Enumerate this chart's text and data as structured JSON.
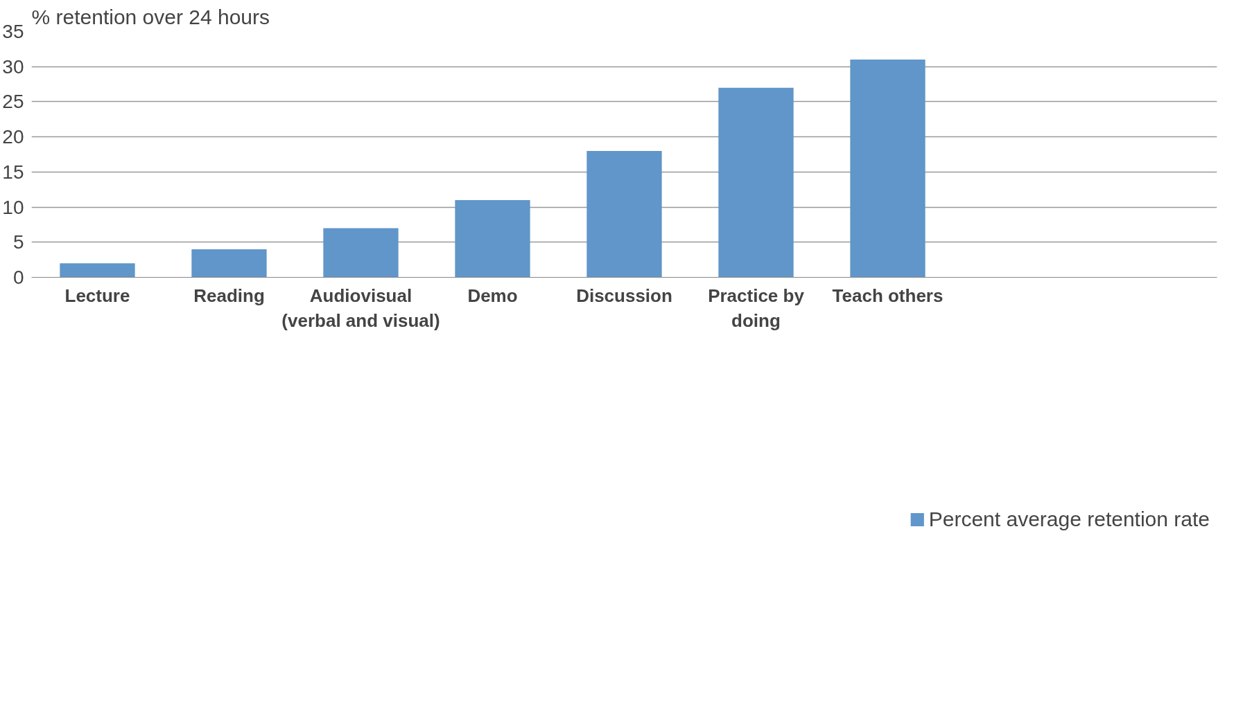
{
  "chart_data": {
    "type": "bar",
    "ylabel": "% retention over 24 hours",
    "categories": [
      "Lecture",
      "Reading",
      "Audiovisual\n(verbal and visual)",
      "Demo",
      "Discussion",
      "Practice by\ndoing",
      "Teach others",
      null,
      null
    ],
    "series": [
      {
        "name": "Percent average retention rate",
        "color": "#6096c9",
        "values": [
          2,
          4,
          7,
          11,
          18,
          27,
          31,
          null,
          null
        ]
      }
    ],
    "ylim": [
      0,
      35
    ],
    "yticks": [
      0,
      5,
      10,
      15,
      20,
      25,
      30,
      35
    ],
    "grid": "y",
    "legend": "bottom"
  }
}
